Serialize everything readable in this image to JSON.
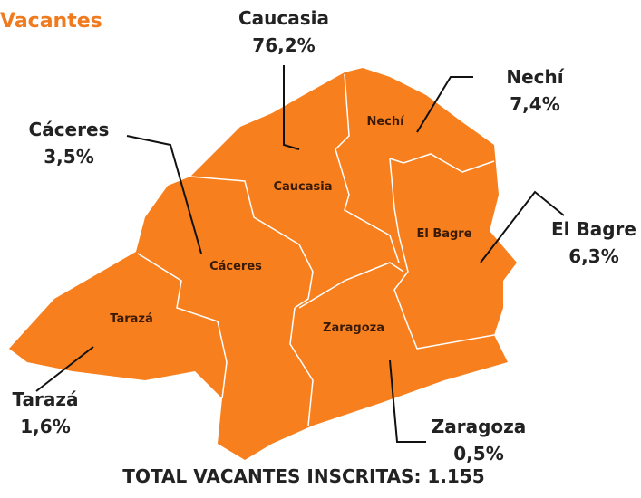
{
  "title": "Vacantes",
  "regions": [
    {
      "name": "Caucasia",
      "share": "76,2%"
    },
    {
      "name": "Nechí",
      "share": "7,4%"
    },
    {
      "name": "Cáceres",
      "share": "3,5%"
    },
    {
      "name": "El Bagre",
      "share": "6,3%"
    },
    {
      "name": "Tarazá",
      "share": "1,6%"
    },
    {
      "name": "Zaragoza",
      "share": "0,5%"
    }
  ],
  "total": "TOTAL VACANTES INSCRITAS: 1.155"
}
